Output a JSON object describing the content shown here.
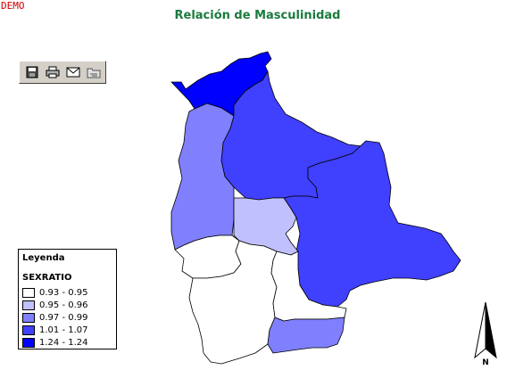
{
  "watermark": "DEMO",
  "title": "Relación de Masculinidad",
  "toolbar": {
    "buttons": [
      {
        "name": "save-icon"
      },
      {
        "name": "print-icon"
      },
      {
        "name": "email-icon"
      },
      {
        "name": "folder-icon"
      }
    ]
  },
  "legend": {
    "title": "Leyenda",
    "field": "SEXRATIO",
    "items": [
      {
        "label": "0.93 - 0.95",
        "color": "#ffffff"
      },
      {
        "label": "0.95 - 0.96",
        "color": "#c0c0ff"
      },
      {
        "label": "0.97 - 0.99",
        "color": "#8080ff"
      },
      {
        "label": "1.01 - 1.07",
        "color": "#4040ff"
      },
      {
        "label": "1.24 - 1.24",
        "color": "#0000ff"
      }
    ]
  },
  "regions": [
    {
      "name": "pando",
      "class_index": 4
    },
    {
      "name": "beni",
      "class_index": 3
    },
    {
      "name": "la-paz",
      "class_index": 2
    },
    {
      "name": "santa-cruz",
      "class_index": 3
    },
    {
      "name": "cochabamba",
      "class_index": 1
    },
    {
      "name": "oruro",
      "class_index": 0
    },
    {
      "name": "potosi",
      "class_index": 0
    },
    {
      "name": "chuquisaca",
      "class_index": 0
    },
    {
      "name": "tarija",
      "class_index": 2
    }
  ],
  "north_arrow": {
    "label": "N"
  }
}
